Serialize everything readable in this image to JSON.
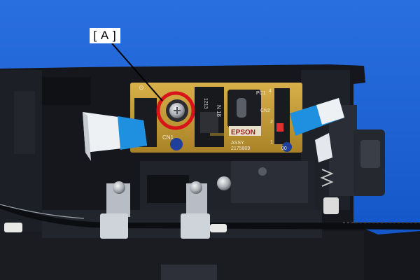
{
  "callout": {
    "label": "[ A ]"
  },
  "board": {
    "brand": "EPSON",
    "part_text": "ASSY.",
    "part_number": "2175809",
    "rev": "00",
    "connector_1": "CN1",
    "connector_2": "CN2",
    "photo_coupler": "PC1",
    "pin_4": "4",
    "pin_2": "2",
    "pin_1": "1",
    "sensor_code": "1213",
    "sensor_mark": "N 18"
  },
  "colors": {
    "background": "#1a5fd0",
    "chassis": "#15171c",
    "pcb": "#c9a23c",
    "highlight_circle": "#d8141b",
    "flex_cable": "#1f8fe0"
  },
  "icons": {
    "screw": "phillips-screw",
    "highlight": "red-circle"
  }
}
